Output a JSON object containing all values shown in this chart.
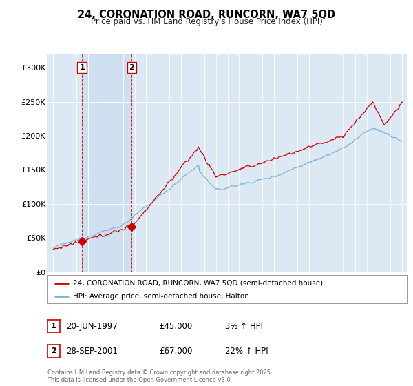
{
  "title": "24, CORONATION ROAD, RUNCORN, WA7 5QD",
  "subtitle": "Price paid vs. HM Land Registry's House Price Index (HPI)",
  "legend_line1": "24, CORONATION ROAD, RUNCORN, WA7 5QD (semi-detached house)",
  "legend_line2": "HPI: Average price, semi-detached house, Halton",
  "sale1_label": "1",
  "sale1_date": "20-JUN-1997",
  "sale1_price": "£45,000",
  "sale1_hpi": "3% ↑ HPI",
  "sale2_label": "2",
  "sale2_date": "28-SEP-2001",
  "sale2_price": "£67,000",
  "sale2_hpi": "22% ↑ HPI",
  "copyright": "Contains HM Land Registry data © Crown copyright and database right 2025.\nThis data is licensed under the Open Government Licence v3.0.",
  "background_color": "#dce9f5",
  "line_color_red": "#cc0000",
  "line_color_blue": "#7ab3d4",
  "ylim": [
    0,
    320000
  ],
  "yticks": [
    0,
    50000,
    100000,
    150000,
    200000,
    250000,
    300000
  ],
  "ytick_labels": [
    "£0",
    "£50K",
    "£100K",
    "£150K",
    "£200K",
    "£250K",
    "£300K"
  ],
  "sale1_year": 1997.47,
  "sale2_year": 2001.75,
  "sale1_value": 45000,
  "sale2_value": 67000
}
